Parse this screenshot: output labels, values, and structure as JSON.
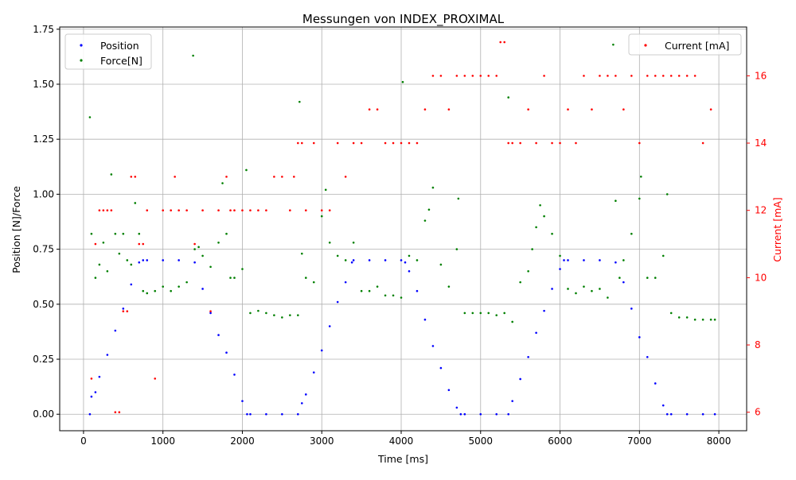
{
  "chart_data": {
    "type": "scatter",
    "title": "Messungen von INDEX_PROXIMAL",
    "xlabel": "Time [ms]",
    "ylabel_left": "Position [N]/Force",
    "ylabel_right": "Current [mA]",
    "xlim": [
      -300,
      8350
    ],
    "ylim_left": [
      -0.075,
      1.76
    ],
    "ylim_right": [
      5.45,
      17.45
    ],
    "x_ticks": [
      0,
      1000,
      2000,
      3000,
      4000,
      5000,
      6000,
      7000,
      8000
    ],
    "y_left_ticks": [
      0.0,
      0.25,
      0.5,
      0.75,
      1.0,
      1.25,
      1.5,
      1.75
    ],
    "y_left_tick_labels": [
      "0.00",
      "0.25",
      "0.50",
      "0.75",
      "1.00",
      "1.25",
      "1.50",
      "1.75"
    ],
    "y_right_ticks": [
      6,
      8,
      10,
      12,
      14,
      16
    ],
    "grid": true,
    "legend_left": [
      {
        "name": "Position",
        "color": "#0000ff"
      },
      {
        "name": "Force[N]",
        "color": "#008000"
      }
    ],
    "legend_right": [
      {
        "name": "Current [mA]",
        "color": "#ff0000"
      }
    ],
    "right_axis_color": "#ff0000",
    "series": [
      {
        "name": "Position",
        "axis": "left",
        "color": "#0000ff",
        "x": [
          80,
          100,
          150,
          200,
          300,
          400,
          500,
          600,
          700,
          750,
          800,
          1000,
          1200,
          1400,
          1500,
          1600,
          1700,
          1800,
          1900,
          2000,
          2060,
          2100,
          2300,
          2500,
          2700,
          2750,
          2800,
          2900,
          3000,
          3100,
          3200,
          3300,
          3380,
          3400,
          3600,
          3800,
          4000,
          4050,
          4100,
          4200,
          4300,
          4400,
          4500,
          4600,
          4700,
          4750,
          4800,
          5000,
          5200,
          5350,
          5400,
          5500,
          5600,
          5700,
          5800,
          5900,
          6000,
          6050,
          6100,
          6300,
          6500,
          6700,
          6800,
          6900,
          7000,
          7100,
          7200,
          7300,
          7350,
          7400,
          7600,
          7800,
          7950
        ],
        "y": [
          0.0,
          0.08,
          0.1,
          0.17,
          0.27,
          0.38,
          0.48,
          0.59,
          0.69,
          0.7,
          0.7,
          0.7,
          0.7,
          0.69,
          0.57,
          0.46,
          0.36,
          0.28,
          0.18,
          0.06,
          0.0,
          0.0,
          0.0,
          0.0,
          0.0,
          0.05,
          0.09,
          0.19,
          0.29,
          0.4,
          0.51,
          0.6,
          0.69,
          0.7,
          0.7,
          0.7,
          0.7,
          0.69,
          0.65,
          0.56,
          0.43,
          0.31,
          0.21,
          0.11,
          0.03,
          0.0,
          0.0,
          0.0,
          0.0,
          0.0,
          0.06,
          0.16,
          0.26,
          0.37,
          0.47,
          0.57,
          0.66,
          0.7,
          0.7,
          0.7,
          0.7,
          0.69,
          0.6,
          0.48,
          0.35,
          0.26,
          0.14,
          0.04,
          0.0,
          0.0,
          0.0,
          0.0,
          0.0
        ]
      },
      {
        "name": "Force[N]",
        "axis": "left",
        "color": "#008000",
        "x": [
          80,
          100,
          150,
          200,
          250,
          300,
          350,
          400,
          450,
          500,
          550,
          600,
          650,
          700,
          750,
          800,
          900,
          1000,
          1100,
          1200,
          1300,
          1380,
          1400,
          1450,
          1500,
          1600,
          1700,
          1750,
          1800,
          1850,
          1900,
          2000,
          2050,
          2100,
          2200,
          2300,
          2400,
          2500,
          2600,
          2700,
          2720,
          2750,
          2800,
          2900,
          3000,
          3050,
          3100,
          3200,
          3300,
          3400,
          3500,
          3600,
          3700,
          3800,
          3900,
          4000,
          4020,
          4100,
          4200,
          4300,
          4350,
          4400,
          4500,
          4600,
          4700,
          4720,
          4800,
          4900,
          5000,
          5100,
          5200,
          5300,
          5350,
          5400,
          5500,
          5600,
          5650,
          5700,
          5750,
          5800,
          5900,
          6000,
          6100,
          6200,
          6300,
          6400,
          6500,
          6600,
          6670,
          6700,
          6750,
          6800,
          6900,
          7000,
          7020,
          7100,
          7200,
          7300,
          7350,
          7400,
          7500,
          7600,
          7700,
          7800,
          7900,
          7950
        ],
        "y": [
          1.35,
          0.82,
          0.62,
          0.68,
          0.78,
          0.65,
          1.09,
          0.82,
          0.73,
          0.82,
          0.7,
          0.68,
          0.96,
          0.82,
          0.56,
          0.55,
          0.56,
          0.58,
          0.56,
          0.58,
          0.6,
          1.63,
          0.75,
          0.76,
          0.72,
          0.67,
          0.78,
          1.05,
          0.82,
          0.62,
          0.62,
          0.66,
          1.11,
          0.46,
          0.47,
          0.46,
          0.45,
          0.44,
          0.45,
          0.45,
          1.42,
          0.73,
          0.62,
          0.6,
          0.9,
          1.02,
          0.78,
          0.72,
          0.7,
          0.78,
          0.56,
          0.56,
          0.58,
          0.54,
          0.54,
          0.53,
          1.51,
          0.72,
          0.7,
          0.88,
          0.93,
          1.03,
          0.68,
          0.58,
          0.75,
          0.98,
          0.46,
          0.46,
          0.46,
          0.46,
          0.45,
          0.46,
          1.44,
          0.42,
          0.6,
          0.65,
          0.75,
          0.85,
          0.95,
          0.9,
          0.82,
          0.72,
          0.57,
          0.55,
          0.58,
          0.56,
          0.57,
          0.53,
          1.68,
          0.97,
          0.62,
          0.7,
          0.82,
          0.98,
          1.08,
          0.62,
          0.62,
          0.72,
          1.0,
          0.46,
          0.44,
          0.44,
          0.43,
          0.43,
          0.43,
          0.43
        ]
      },
      {
        "name": "Current [mA]",
        "axis": "right",
        "color": "#ff0000",
        "x": [
          100,
          150,
          200,
          250,
          300,
          350,
          400,
          450,
          500,
          550,
          600,
          650,
          700,
          750,
          800,
          900,
          1000,
          1100,
          1150,
          1200,
          1300,
          1400,
          1500,
          1600,
          1700,
          1800,
          1850,
          1900,
          2000,
          2100,
          2200,
          2300,
          2400,
          2500,
          2600,
          2650,
          2700,
          2750,
          2800,
          2900,
          3000,
          3100,
          3200,
          3300,
          3400,
          3500,
          3600,
          3700,
          3800,
          3900,
          4000,
          4100,
          4200,
          4300,
          4400,
          4500,
          4600,
          4700,
          4800,
          4900,
          5000,
          5100,
          5200,
          5250,
          5300,
          5350,
          5400,
          5500,
          5600,
          5700,
          5800,
          5900,
          6000,
          6100,
          6200,
          6300,
          6400,
          6500,
          6600,
          6700,
          6800,
          6900,
          7000,
          7100,
          7200,
          7300,
          7400,
          7500,
          7600,
          7700,
          7800,
          7900
        ],
        "y": [
          7.0,
          11.0,
          12.0,
          12.0,
          12.0,
          12.0,
          6.0,
          6.0,
          9.0,
          9.0,
          13.0,
          13.0,
          11.0,
          11.0,
          12.0,
          7.0,
          12.0,
          12.0,
          13.0,
          12.0,
          12.0,
          11.0,
          12.0,
          9.0,
          12.0,
          13.0,
          12.0,
          12.0,
          12.0,
          12.0,
          12.0,
          12.0,
          13.0,
          13.0,
          12.0,
          13.0,
          14.0,
          14.0,
          12.0,
          14.0,
          12.0,
          12.0,
          14.0,
          13.0,
          14.0,
          14.0,
          15.0,
          15.0,
          14.0,
          14.0,
          14.0,
          14.0,
          14.0,
          15.0,
          16.0,
          16.0,
          15.0,
          16.0,
          16.0,
          16.0,
          16.0,
          16.0,
          16.0,
          17.0,
          17.0,
          14.0,
          14.0,
          14.0,
          15.0,
          14.0,
          16.0,
          14.0,
          14.0,
          15.0,
          14.0,
          16.0,
          15.0,
          16.0,
          16.0,
          16.0,
          15.0,
          16.0,
          14.0,
          16.0,
          16.0,
          16.0,
          16.0,
          16.0,
          16.0,
          16.0,
          14.0,
          15.0
        ]
      }
    ]
  }
}
